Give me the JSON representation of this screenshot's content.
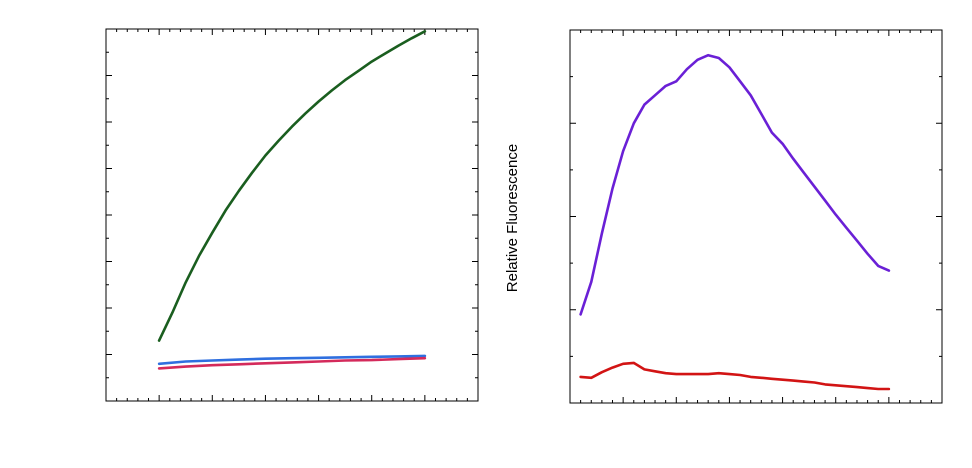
{
  "chart_data": [
    {
      "type": "line",
      "title": "",
      "xlabel": "",
      "ylabel": "",
      "xlim": [
        0,
        140
      ],
      "ylim": [
        0,
        8
      ],
      "grid": false,
      "series": [
        {
          "color": "#1a5e1f",
          "x": [
            20,
            25,
            30,
            35,
            40,
            45,
            50,
            55,
            60,
            65,
            70,
            75,
            80,
            85,
            90,
            95,
            100,
            105,
            110,
            115,
            120
          ],
          "values": [
            1.3,
            1.9,
            2.55,
            3.12,
            3.62,
            4.1,
            4.52,
            4.91,
            5.28,
            5.6,
            5.9,
            6.18,
            6.44,
            6.68,
            6.9,
            7.1,
            7.3,
            7.47,
            7.64,
            7.8,
            7.95
          ]
        },
        {
          "color": "#2f6fdf",
          "x": [
            20,
            30,
            40,
            50,
            60,
            70,
            80,
            90,
            100,
            110,
            120
          ],
          "values": [
            0.8,
            0.85,
            0.87,
            0.89,
            0.91,
            0.92,
            0.93,
            0.94,
            0.95,
            0.96,
            0.97
          ]
        },
        {
          "color": "#d42a5b",
          "x": [
            20,
            30,
            40,
            50,
            60,
            70,
            80,
            90,
            100,
            110,
            120
          ],
          "values": [
            0.7,
            0.74,
            0.77,
            0.79,
            0.81,
            0.83,
            0.85,
            0.87,
            0.88,
            0.9,
            0.92
          ]
        }
      ]
    },
    {
      "type": "line",
      "title": "",
      "xlabel": "",
      "ylabel": "Relative Fluorescence",
      "xlim": [
        0,
        140
      ],
      "ylim": [
        0,
        4
      ],
      "grid": false,
      "series": [
        {
          "color": "#6a20d6",
          "x": [
            4,
            8,
            12,
            16,
            20,
            24,
            28,
            32,
            36,
            40,
            44,
            48,
            52,
            56,
            60,
            64,
            68,
            72,
            76,
            80,
            84,
            88,
            92,
            96,
            100,
            104,
            108,
            112,
            116,
            120
          ],
          "values": [
            0.95,
            1.3,
            1.82,
            2.3,
            2.7,
            3.0,
            3.2,
            3.3,
            3.4,
            3.45,
            3.58,
            3.68,
            3.73,
            3.7,
            3.6,
            3.45,
            3.3,
            3.1,
            2.9,
            2.78,
            2.62,
            2.47,
            2.32,
            2.17,
            2.02,
            1.88,
            1.74,
            1.6,
            1.47,
            1.42
          ]
        },
        {
          "color": "#d21414",
          "x": [
            4,
            8,
            12,
            16,
            20,
            24,
            28,
            32,
            36,
            40,
            44,
            48,
            52,
            56,
            60,
            64,
            68,
            72,
            76,
            80,
            84,
            88,
            92,
            96,
            100,
            104,
            108,
            112,
            116,
            120
          ],
          "values": [
            0.28,
            0.27,
            0.33,
            0.38,
            0.42,
            0.43,
            0.36,
            0.34,
            0.32,
            0.31,
            0.31,
            0.31,
            0.31,
            0.32,
            0.31,
            0.3,
            0.28,
            0.27,
            0.26,
            0.25,
            0.24,
            0.23,
            0.22,
            0.2,
            0.19,
            0.18,
            0.17,
            0.16,
            0.15,
            0.15
          ]
        }
      ]
    }
  ]
}
